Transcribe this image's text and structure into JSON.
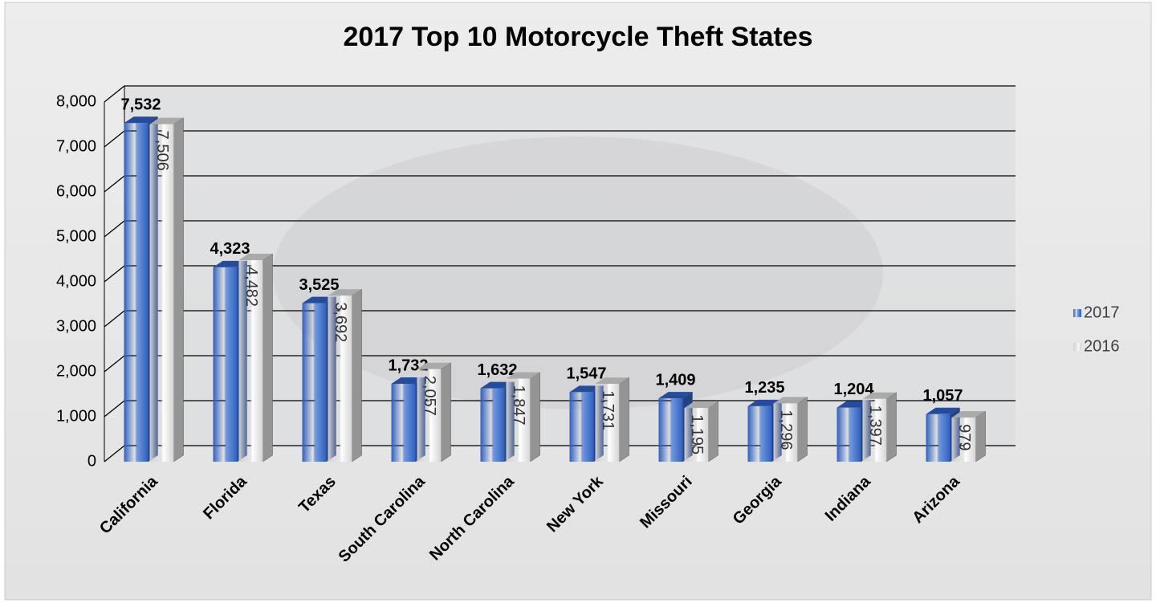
{
  "chart_data": {
    "type": "bar3d",
    "title": "2017 Top 10 Motorcycle Theft States",
    "categories": [
      "California",
      "Florida",
      "Texas",
      "South Carolina",
      "North Carolina",
      "New York",
      "Missouri",
      "Georgia",
      "Indiana",
      "Arizona"
    ],
    "series": [
      {
        "name": "2017",
        "color": "#2f5fbf",
        "values": [
          7532,
          4323,
          3525,
          1732,
          1632,
          1547,
          1409,
          1235,
          1204,
          1057
        ],
        "value_labels": [
          "7,532",
          "4,323",
          "3,525",
          "1,732",
          "1,632",
          "1,547",
          "1,409",
          "1,235",
          "1,204",
          "1,057"
        ]
      },
      {
        "name": "2016",
        "color": "#d4d4d4",
        "values": [
          7506,
          4482,
          3692,
          2057,
          1847,
          1731,
          1195,
          1296,
          1397,
          979
        ],
        "value_labels": [
          "7,506",
          "4,482",
          "3,692",
          "2,057",
          "1,847",
          "1,731",
          "1,195",
          "1,296",
          "1,397",
          "979"
        ]
      }
    ],
    "ylim": [
      0,
      8000
    ],
    "yticks": [
      0,
      {
        "value": 1000,
        "label": "1,000"
      },
      {
        "value": 2000,
        "label": "2,000"
      },
      {
        "value": 3000,
        "label": "3,000"
      },
      {
        "value": 4000,
        "label": "4,000"
      },
      {
        "value": 5000,
        "label": "5,000"
      },
      {
        "value": 6000,
        "label": "6,000"
      },
      {
        "value": 7000,
        "label": "7,000"
      },
      {
        "value": 8000,
        "label": "8,000"
      }
    ],
    "grid": true,
    "legend": "right"
  }
}
